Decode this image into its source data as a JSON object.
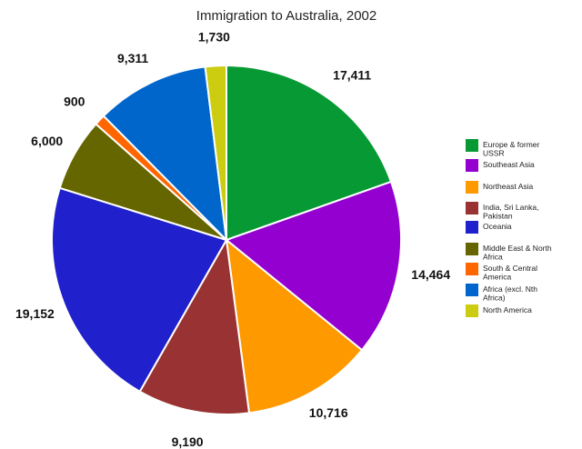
{
  "chart_data": {
    "type": "pie",
    "title": "Immigration to Australia, 2002",
    "legend_position": "right",
    "slices": [
      {
        "label": "Europe & former USSR",
        "legend_lines": [
          "Europe & former",
          "USSR"
        ],
        "value": 17411,
        "value_label": "17,411",
        "color": "#079a34"
      },
      {
        "label": "Southeast Asia",
        "legend_lines": [
          "Southeast Asia"
        ],
        "value": 14464,
        "value_label": "14,464",
        "color": "#9400d0"
      },
      {
        "label": "Northeast Asia",
        "legend_lines": [
          "Northeast Asia"
        ],
        "value": 10716,
        "value_label": "10,716",
        "color": "#ff9900"
      },
      {
        "label": "India, Sri Lanka, Pakistan",
        "legend_lines": [
          "India, Sri Lanka,",
          "Pakistan"
        ],
        "value": 9190,
        "value_label": "9,190",
        "color": "#993333"
      },
      {
        "label": "Oceania",
        "legend_lines": [
          "Oceania"
        ],
        "value": 19152,
        "value_label": "19,152",
        "color": "#2020cc"
      },
      {
        "label": "Middle East & North Africa",
        "legend_lines": [
          "Middle East & North",
          "Africa"
        ],
        "value": 6000,
        "value_label": "6,000",
        "color": "#666600"
      },
      {
        "label": "South & Central America",
        "legend_lines": [
          "South & Central",
          "America"
        ],
        "value": 900,
        "value_label": "900",
        "color": "#ff6600"
      },
      {
        "label": "Africa (excl. Nth Africa)",
        "legend_lines": [
          "Africa (excl. Nth",
          "Africa)"
        ],
        "value": 9311,
        "value_label": "9,311",
        "color": "#0066cc"
      },
      {
        "label": "North America",
        "legend_lines": [
          "North America"
        ],
        "value": 1730,
        "value_label": "1,730",
        "color": "#cccc11"
      }
    ]
  }
}
